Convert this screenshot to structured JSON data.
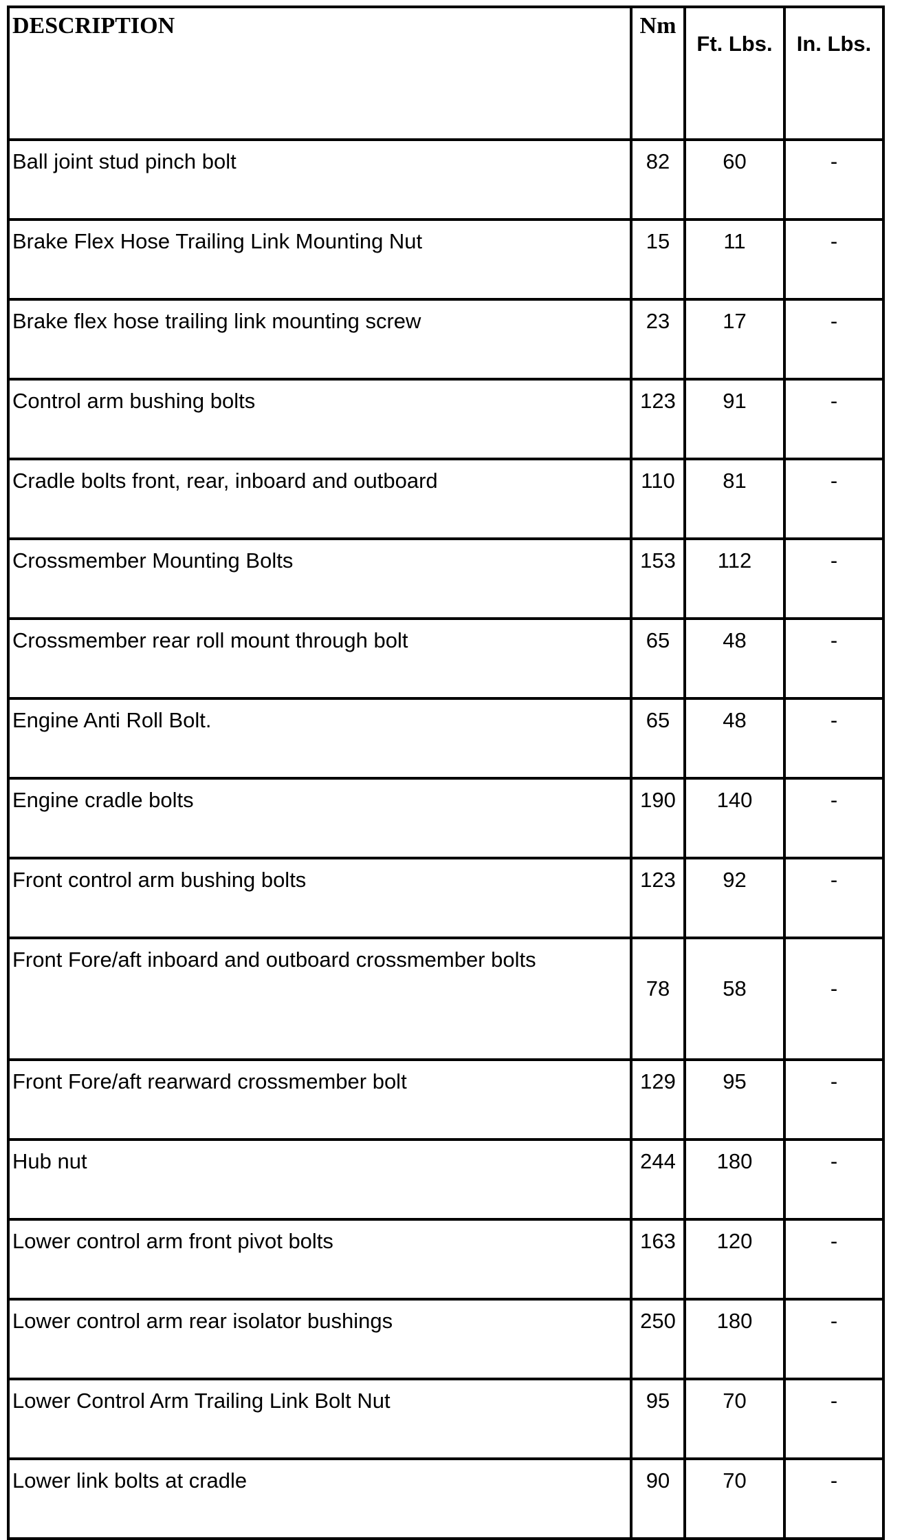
{
  "table": {
    "headers": {
      "description": "DESCRIPTION",
      "nm": "Nm",
      "ft_lbs": "Ft. Lbs.",
      "in_lbs": "In. Lbs."
    },
    "rows": [
      {
        "description": "Ball joint stud pinch bolt",
        "nm": "82",
        "ft_lbs": "60",
        "in_lbs": "-"
      },
      {
        "description": "Brake Flex Hose Trailing Link Mounting Nut",
        "nm": "15",
        "ft_lbs": "11",
        "in_lbs": "-"
      },
      {
        "description": "Brake flex hose trailing link mounting screw",
        "nm": "23",
        "ft_lbs": "17",
        "in_lbs": "-"
      },
      {
        "description": "Control arm bushing bolts",
        "nm": "123",
        "ft_lbs": "91",
        "in_lbs": "-"
      },
      {
        "description": "Cradle bolts front, rear, inboard and outboard",
        "nm": "110",
        "ft_lbs": "81",
        "in_lbs": "-"
      },
      {
        "description": "Crossmember Mounting Bolts",
        "nm": "153",
        "ft_lbs": "112",
        "in_lbs": "-"
      },
      {
        "description": "Crossmember rear roll mount through bolt",
        "nm": "65",
        "ft_lbs": "48",
        "in_lbs": "-"
      },
      {
        "description": "Engine Anti Roll Bolt.",
        "nm": "65",
        "ft_lbs": "48",
        "in_lbs": "-"
      },
      {
        "description": "Engine cradle bolts",
        "nm": "190",
        "ft_lbs": "140",
        "in_lbs": "-"
      },
      {
        "description": "Front control arm bushing bolts",
        "nm": "123",
        "ft_lbs": "92",
        "in_lbs": "-"
      },
      {
        "description": "Front Fore/aft inboard and outboard crossmember bolts",
        "nm": "78",
        "ft_lbs": "58",
        "in_lbs": "-"
      },
      {
        "description": "Front Fore/aft rearward crossmember bolt",
        "nm": "129",
        "ft_lbs": "95",
        "in_lbs": "-"
      },
      {
        "description": "Hub nut",
        "nm": "244",
        "ft_lbs": "180",
        "in_lbs": "-"
      },
      {
        "description": "Lower control arm front pivot bolts",
        "nm": "163",
        "ft_lbs": "120",
        "in_lbs": "-"
      },
      {
        "description": "Lower control arm rear isolator bushings",
        "nm": "250",
        "ft_lbs": "180",
        "in_lbs": "-"
      },
      {
        "description": "Lower Control Arm Trailing Link Bolt Nut",
        "nm": "95",
        "ft_lbs": "70",
        "in_lbs": "-"
      },
      {
        "description": "Lower link bolts at cradle",
        "nm": "90",
        "ft_lbs": "70",
        "in_lbs": "-"
      }
    ]
  }
}
